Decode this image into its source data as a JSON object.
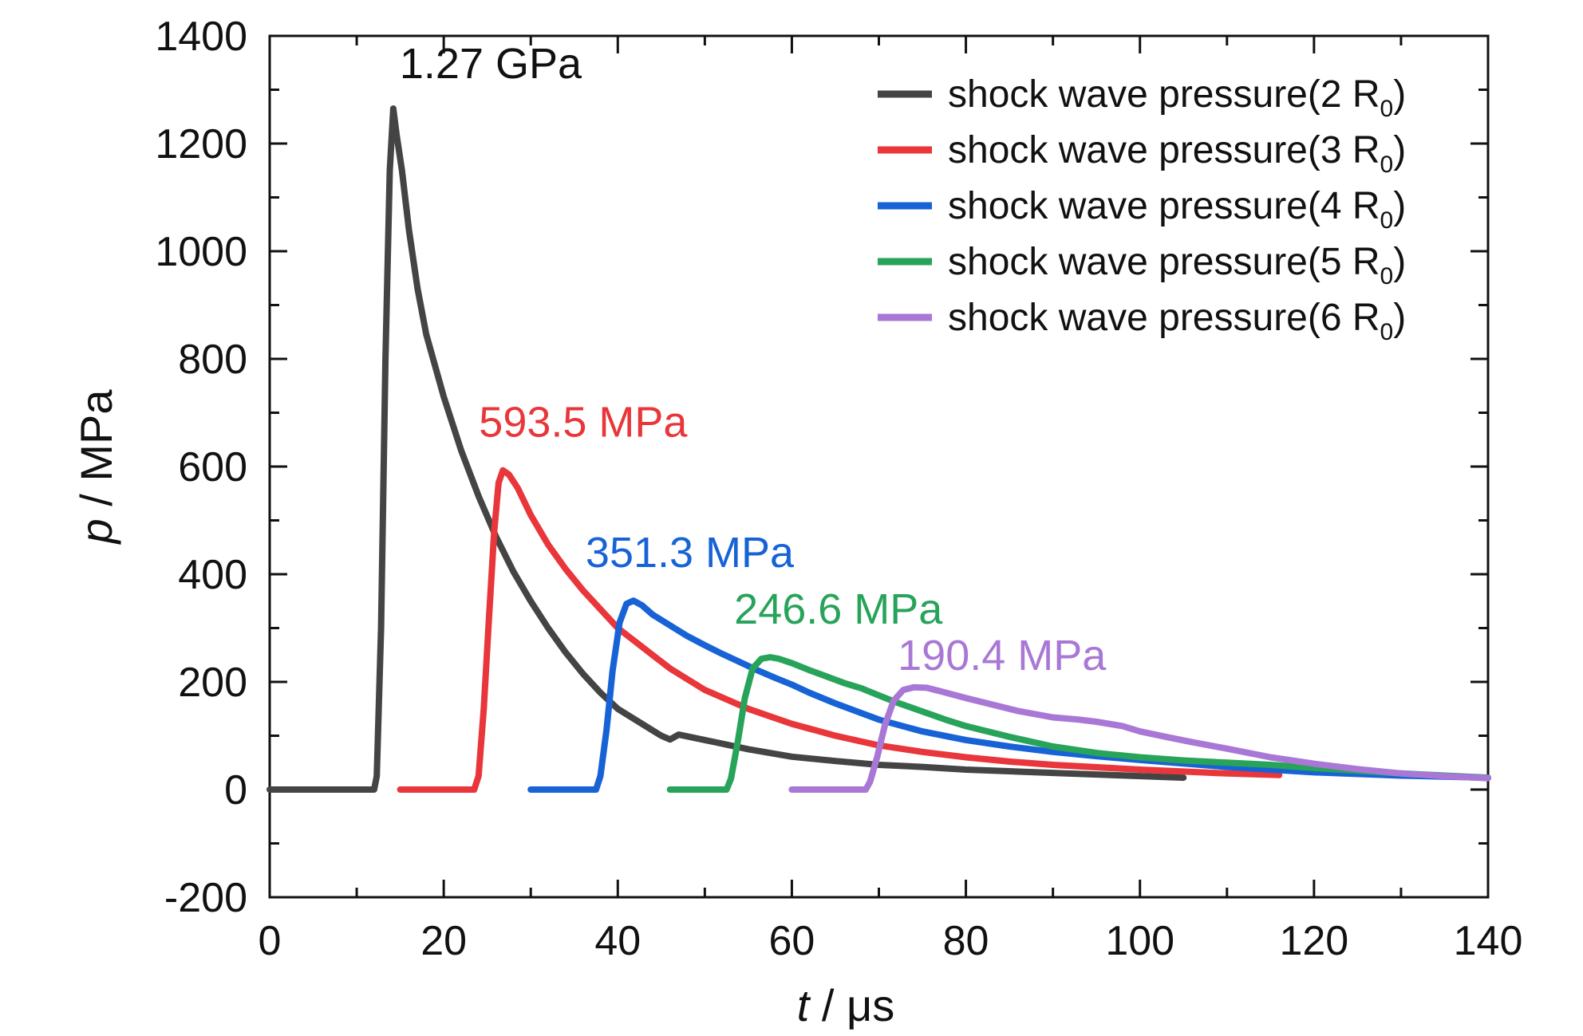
{
  "chart_data": {
    "type": "line",
    "title": "",
    "xlabel": {
      "var": "t",
      "unit": " / μs"
    },
    "ylabel": {
      "var": "p",
      "unit": " / MPa"
    },
    "xlim": [
      0,
      140
    ],
    "ylim": [
      -200,
      1400
    ],
    "xticks": [
      0,
      20,
      40,
      60,
      80,
      100,
      120,
      140
    ],
    "yticks": [
      -200,
      0,
      200,
      400,
      600,
      800,
      1000,
      1200,
      1400
    ],
    "xtick_labels": [
      "0",
      "20",
      "40",
      "60",
      "80",
      "100",
      "120",
      "140"
    ],
    "ytick_labels": [
      "-200",
      "0",
      "200",
      "400",
      "600",
      "800",
      "1000",
      "1200",
      "1400"
    ],
    "grid": false,
    "legend_position": "top-right",
    "series": [
      {
        "name": "shock wave pressure(2 R0)",
        "label_main": "shock wave pressure(2 R",
        "label_sub": "0",
        "label_end": ")",
        "color": "#444444",
        "peak_label": "1.27 GPa",
        "points": [
          [
            0,
            0
          ],
          [
            12,
            0
          ],
          [
            12.3,
            25
          ],
          [
            12.8,
            300
          ],
          [
            13.3,
            800
          ],
          [
            13.8,
            1150
          ],
          [
            14.2,
            1265
          ],
          [
            14.6,
            1215
          ],
          [
            15.2,
            1150
          ],
          [
            16,
            1040
          ],
          [
            17,
            930
          ],
          [
            18,
            845
          ],
          [
            20,
            730
          ],
          [
            22,
            630
          ],
          [
            24,
            545
          ],
          [
            26,
            470
          ],
          [
            28,
            405
          ],
          [
            30,
            350
          ],
          [
            32,
            300
          ],
          [
            34,
            255
          ],
          [
            36,
            215
          ],
          [
            38,
            180
          ],
          [
            40,
            150
          ],
          [
            42,
            130
          ],
          [
            44,
            110
          ],
          [
            45,
            100
          ],
          [
            46,
            93
          ],
          [
            47,
            102
          ],
          [
            50,
            92
          ],
          [
            55,
            75
          ],
          [
            60,
            61
          ],
          [
            65,
            53
          ],
          [
            70,
            46
          ],
          [
            75,
            42
          ],
          [
            80,
            37
          ],
          [
            90,
            31
          ],
          [
            100,
            25
          ],
          [
            105,
            22
          ]
        ]
      },
      {
        "name": "shock wave pressure(3 R0)",
        "label_main": "shock wave pressure(3 R",
        "label_sub": "0",
        "label_end": ")",
        "color": "#e8363a",
        "peak_label": "593.5 MPa",
        "points": [
          [
            15,
            0
          ],
          [
            23.5,
            0
          ],
          [
            24,
            25
          ],
          [
            24.6,
            150
          ],
          [
            25.2,
            320
          ],
          [
            25.8,
            480
          ],
          [
            26.3,
            570
          ],
          [
            26.8,
            593
          ],
          [
            27.5,
            585
          ],
          [
            28.5,
            560
          ],
          [
            30,
            510
          ],
          [
            32,
            455
          ],
          [
            34,
            410
          ],
          [
            36,
            370
          ],
          [
            38,
            335
          ],
          [
            40,
            300
          ],
          [
            42,
            275
          ],
          [
            44,
            250
          ],
          [
            46,
            225
          ],
          [
            48,
            205
          ],
          [
            50,
            185
          ],
          [
            55,
            150
          ],
          [
            60,
            122
          ],
          [
            65,
            100
          ],
          [
            70,
            82
          ],
          [
            75,
            70
          ],
          [
            80,
            60
          ],
          [
            85,
            52
          ],
          [
            90,
            46
          ],
          [
            100,
            37
          ],
          [
            110,
            30
          ],
          [
            116,
            27
          ]
        ]
      },
      {
        "name": "shock wave pressure(4 R0)",
        "label_main": "shock wave pressure(4 R",
        "label_sub": "0",
        "label_end": ")",
        "color": "#1763d6",
        "peak_label": "351.3 MPa",
        "points": [
          [
            30,
            0
          ],
          [
            37.5,
            0
          ],
          [
            38,
            25
          ],
          [
            38.7,
            110
          ],
          [
            39.4,
            220
          ],
          [
            40.2,
            310
          ],
          [
            41,
            345
          ],
          [
            41.8,
            351
          ],
          [
            42.8,
            342
          ],
          [
            44,
            325
          ],
          [
            46,
            305
          ],
          [
            48,
            285
          ],
          [
            50,
            268
          ],
          [
            52,
            252
          ],
          [
            54,
            237
          ],
          [
            56,
            222
          ],
          [
            58,
            208
          ],
          [
            60,
            195
          ],
          [
            62,
            180
          ],
          [
            65,
            160
          ],
          [
            70,
            130
          ],
          [
            75,
            108
          ],
          [
            80,
            92
          ],
          [
            85,
            80
          ],
          [
            90,
            70
          ],
          [
            95,
            62
          ],
          [
            100,
            55
          ],
          [
            110,
            42
          ],
          [
            120,
            32
          ],
          [
            130,
            26
          ],
          [
            140,
            22
          ]
        ]
      },
      {
        "name": "shock wave pressure(5 R0)",
        "label_main": "shock wave pressure(5 R",
        "label_sub": "0",
        "label_end": ")",
        "color": "#28a35a",
        "peak_label": "246.6 MPa",
        "points": [
          [
            46,
            0
          ],
          [
            52.5,
            0
          ],
          [
            53,
            20
          ],
          [
            53.8,
            90
          ],
          [
            54.6,
            170
          ],
          [
            55.5,
            225
          ],
          [
            56.5,
            243
          ],
          [
            57.5,
            246
          ],
          [
            58.5,
            243
          ],
          [
            60,
            235
          ],
          [
            62,
            222
          ],
          [
            64,
            210
          ],
          [
            66,
            198
          ],
          [
            68,
            188
          ],
          [
            70,
            175
          ],
          [
            72,
            162
          ],
          [
            75,
            145
          ],
          [
            78,
            128
          ],
          [
            80,
            118
          ],
          [
            85,
            98
          ],
          [
            90,
            80
          ],
          [
            95,
            68
          ],
          [
            100,
            60
          ],
          [
            105,
            54
          ],
          [
            110,
            50
          ],
          [
            115,
            46
          ],
          [
            120,
            40
          ],
          [
            130,
            30
          ],
          [
            140,
            22
          ]
        ]
      },
      {
        "name": "shock wave pressure(6 R0)",
        "label_main": "shock wave pressure(6 R",
        "label_sub": "0",
        "label_end": ")",
        "color": "#a977d6",
        "peak_label": "190.4 MPa",
        "points": [
          [
            60,
            0
          ],
          [
            68.5,
            0
          ],
          [
            69,
            15
          ],
          [
            69.8,
            60
          ],
          [
            70.7,
            120
          ],
          [
            71.7,
            165
          ],
          [
            72.8,
            185
          ],
          [
            74,
            190
          ],
          [
            75.5,
            189
          ],
          [
            77,
            183
          ],
          [
            80,
            170
          ],
          [
            83,
            158
          ],
          [
            86,
            146
          ],
          [
            90,
            134
          ],
          [
            93,
            130
          ],
          [
            95,
            126
          ],
          [
            98,
            118
          ],
          [
            100,
            108
          ],
          [
            103,
            98
          ],
          [
            106,
            88
          ],
          [
            110,
            76
          ],
          [
            115,
            60
          ],
          [
            120,
            48
          ],
          [
            125,
            38
          ],
          [
            130,
            30
          ],
          [
            135,
            25
          ],
          [
            140,
            21
          ]
        ]
      }
    ]
  }
}
